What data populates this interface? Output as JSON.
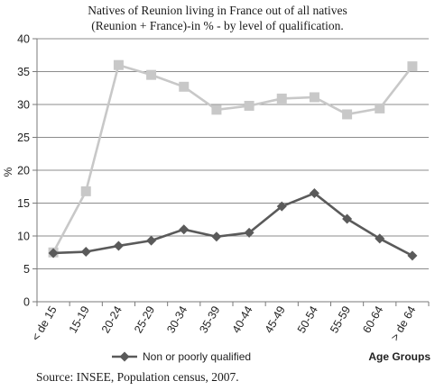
{
  "chart_data": {
    "type": "line",
    "title_lines": [
      "Natives of Reunion living in France out of all natives",
      "(Reunion + France)-in % - by level of qualification."
    ],
    "ylabel": "%",
    "xlabel": "Age Groups",
    "ylim": [
      0,
      40
    ],
    "yticks": [
      0,
      5,
      10,
      15,
      20,
      25,
      30,
      35,
      40
    ],
    "grid": true,
    "categories": [
      "< de 15",
      "15-19",
      "20-24",
      "25-29",
      "30-34",
      "35-39",
      "40-44",
      "45-49",
      "50-54",
      "55-59",
      "60-64",
      "> de 64"
    ],
    "series": [
      {
        "legend": "",
        "color": "#c8c8c8",
        "marker": "square",
        "values": [
          7.5,
          16.8,
          36.0,
          34.5,
          32.7,
          29.2,
          29.8,
          30.9,
          31.1,
          28.5,
          29.4,
          35.8
        ]
      },
      {
        "legend": "Non or poorly qualified",
        "color": "#5a5a5a",
        "marker": "diamond",
        "values": [
          7.4,
          7.6,
          8.5,
          9.3,
          11.0,
          9.9,
          10.5,
          14.5,
          16.5,
          12.6,
          9.6,
          7.0
        ]
      }
    ],
    "legend_position": "bottom"
  },
  "footer": {
    "source": "Source: INSEE, Population census, 2007."
  }
}
